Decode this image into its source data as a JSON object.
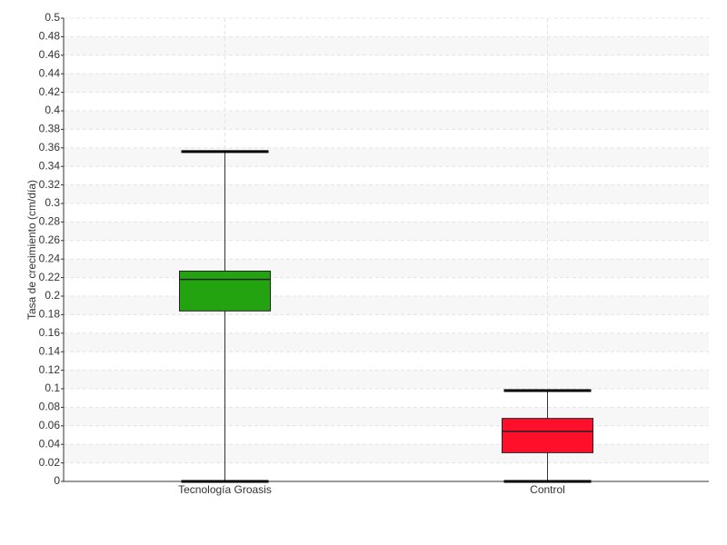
{
  "chart_data": {
    "type": "box",
    "ylabel": "Tasa de crecimiento (cm/día)",
    "categories": [
      "Tecnología Groasis",
      "Control"
    ],
    "colors": [
      "#22a30f",
      "#ff0f2a"
    ],
    "boxes": [
      {
        "min": 0,
        "q1": 0.184,
        "median": 0.218,
        "q3": 0.227,
        "max": 0.356
      },
      {
        "min": 0,
        "q1": 0.031,
        "median": 0.054,
        "q3": 0.068,
        "max": 0.098
      }
    ],
    "ylim": [
      0,
      0.5
    ],
    "yticks": [
      0,
      0.02,
      0.04,
      0.06,
      0.08,
      0.1,
      0.12,
      0.14,
      0.16,
      0.18,
      0.2,
      0.22,
      0.24,
      0.26,
      0.28,
      0.3,
      0.32,
      0.34,
      0.36,
      0.38,
      0.4,
      0.42,
      0.44,
      0.46,
      0.48,
      0.5
    ],
    "grid": true
  }
}
